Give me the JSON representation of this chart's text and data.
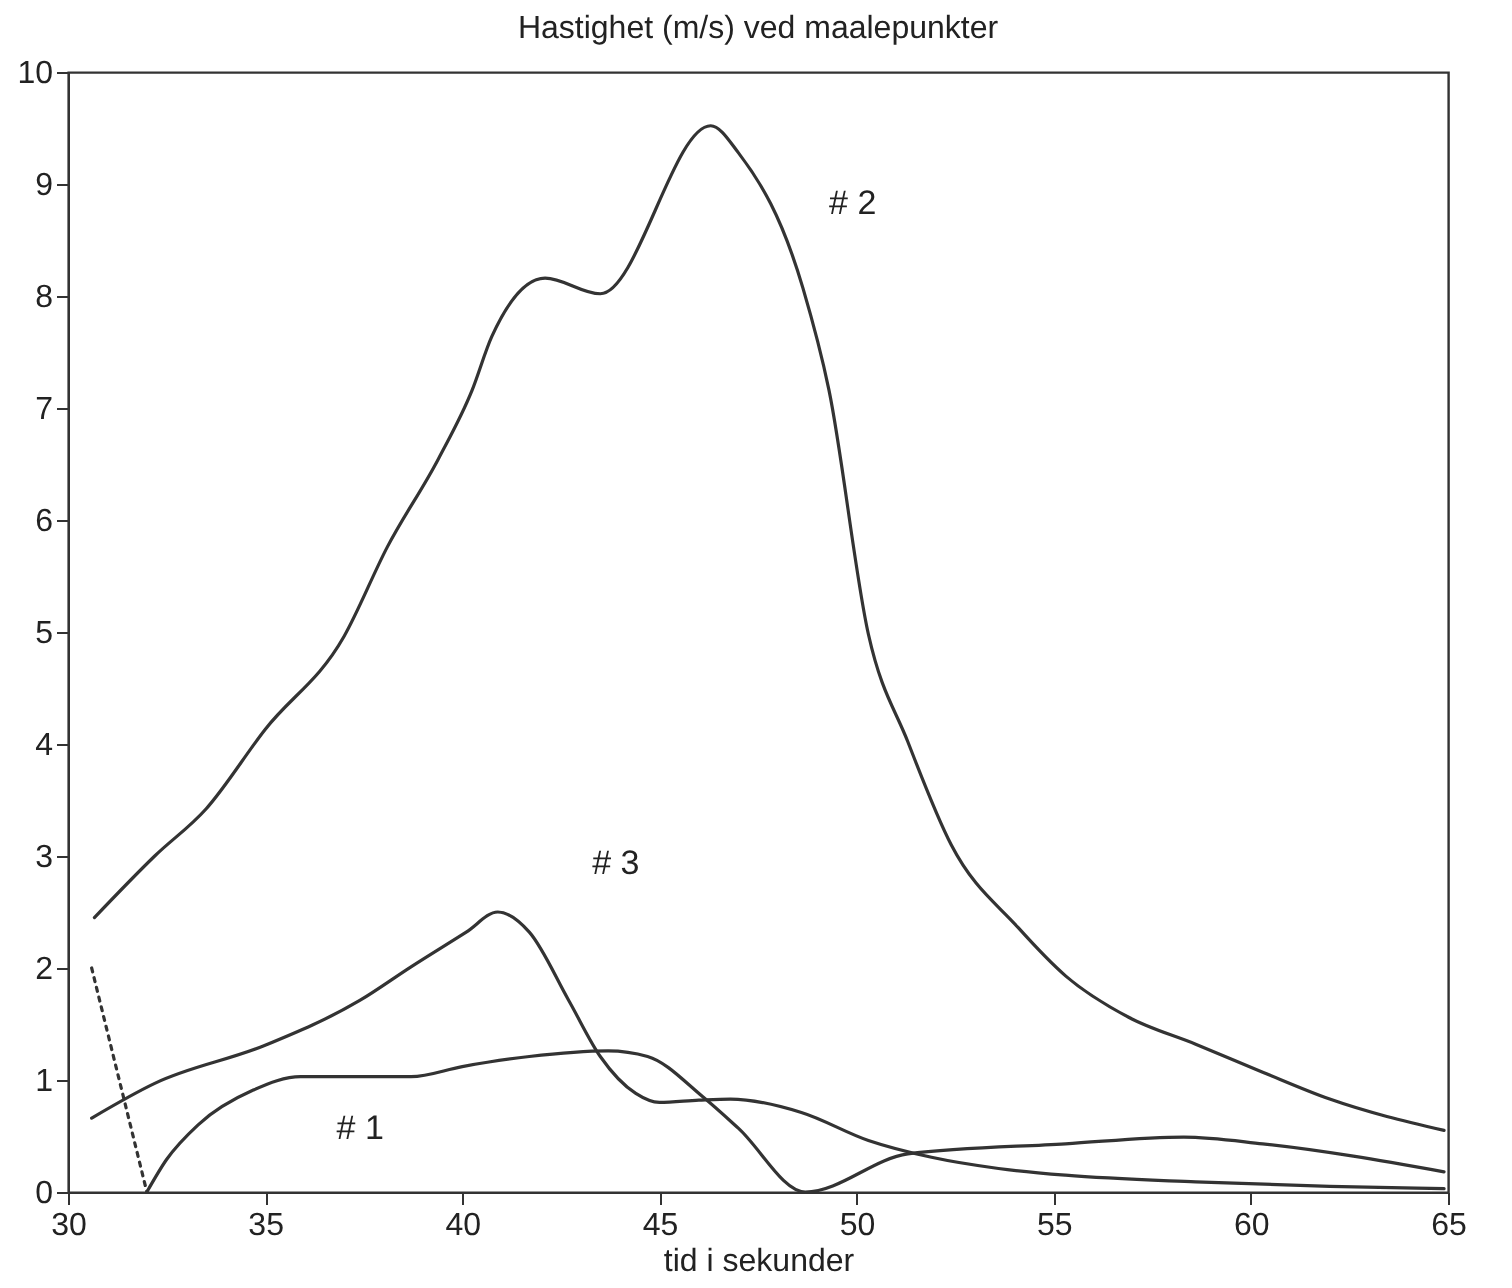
{
  "chart_data": {
    "type": "line",
    "title": "Hastighet (m/s) ved maalepunkter",
    "xlabel": "tid i sekunder",
    "xlim": [
      30,
      65
    ],
    "xticks": [
      30,
      35,
      40,
      45,
      50,
      55,
      60,
      65
    ],
    "ylim": [
      0,
      10
    ],
    "yticks": [
      0,
      1,
      2,
      3,
      4,
      5,
      6,
      7,
      8,
      9,
      10
    ],
    "grid": false,
    "marker": "none",
    "line_style": "solid",
    "series": [
      {
        "name": "# 2",
        "color": "#333333",
        "x": [
          30.67,
          32.2,
          33.5,
          35.0,
          37.0,
          38.1,
          39.4,
          40.25,
          40.75,
          42.1,
          43.5,
          46.3,
          47.0,
          48.64,
          49.3,
          50.3,
          51.3,
          52.4,
          54.1,
          55.3,
          56.9,
          58.6,
          60.3,
          62.0,
          64.9
        ],
        "values": [
          2.45,
          3.0,
          3.42,
          4.13,
          4.96,
          5.76,
          6.55,
          7.16,
          7.64,
          8.16,
          8.02,
          9.52,
          9.28,
          8.07,
          7.16,
          4.98,
          4.02,
          3.1,
          2.36,
          1.93,
          1.56,
          1.32,
          1.07,
          0.83,
          0.55
        ]
      },
      {
        "name": "# 3",
        "color": "#333333",
        "x": [
          30.6,
          32.2,
          35.0,
          37.4,
          38.7,
          40.1,
          40.9,
          41.7,
          42.7,
          43.5,
          44.4,
          45.0,
          46.0,
          46.8,
          48.6,
          50.3,
          51.9,
          53.6,
          55.3,
          58.6,
          62.0,
          64.9
        ],
        "values": [
          0.66,
          0.97,
          1.31,
          1.71,
          2.01,
          2.32,
          2.5,
          2.32,
          1.71,
          1.21,
          0.88,
          0.8,
          0.82,
          0.83,
          0.71,
          0.46,
          0.31,
          0.21,
          0.15,
          0.09,
          0.05,
          0.03
        ]
      },
      {
        "name": "# 1",
        "color": "#333333",
        "x": [
          32.0,
          32.5,
          33.3,
          34.7,
          35.9,
          37.4,
          38.7,
          40.0,
          41.7,
          43.7,
          44.7,
          46.1,
          47.0,
          48.7,
          51.3,
          55.3,
          58.3,
          60.3,
          64.9
        ],
        "values": [
          0,
          0.29,
          0.6,
          0.91,
          1.03,
          1.03,
          1.03,
          1.12,
          1.21,
          1.26,
          1.21,
          0.85,
          0.57,
          0,
          0.34,
          0.43,
          0.49,
          0.43,
          0.18
        ]
      },
      {
        "color": "#333333",
        "line_style": "dotted",
        "x": [
          30.6,
          32.0
        ],
        "values": [
          2.0,
          0
        ]
      }
    ]
  }
}
